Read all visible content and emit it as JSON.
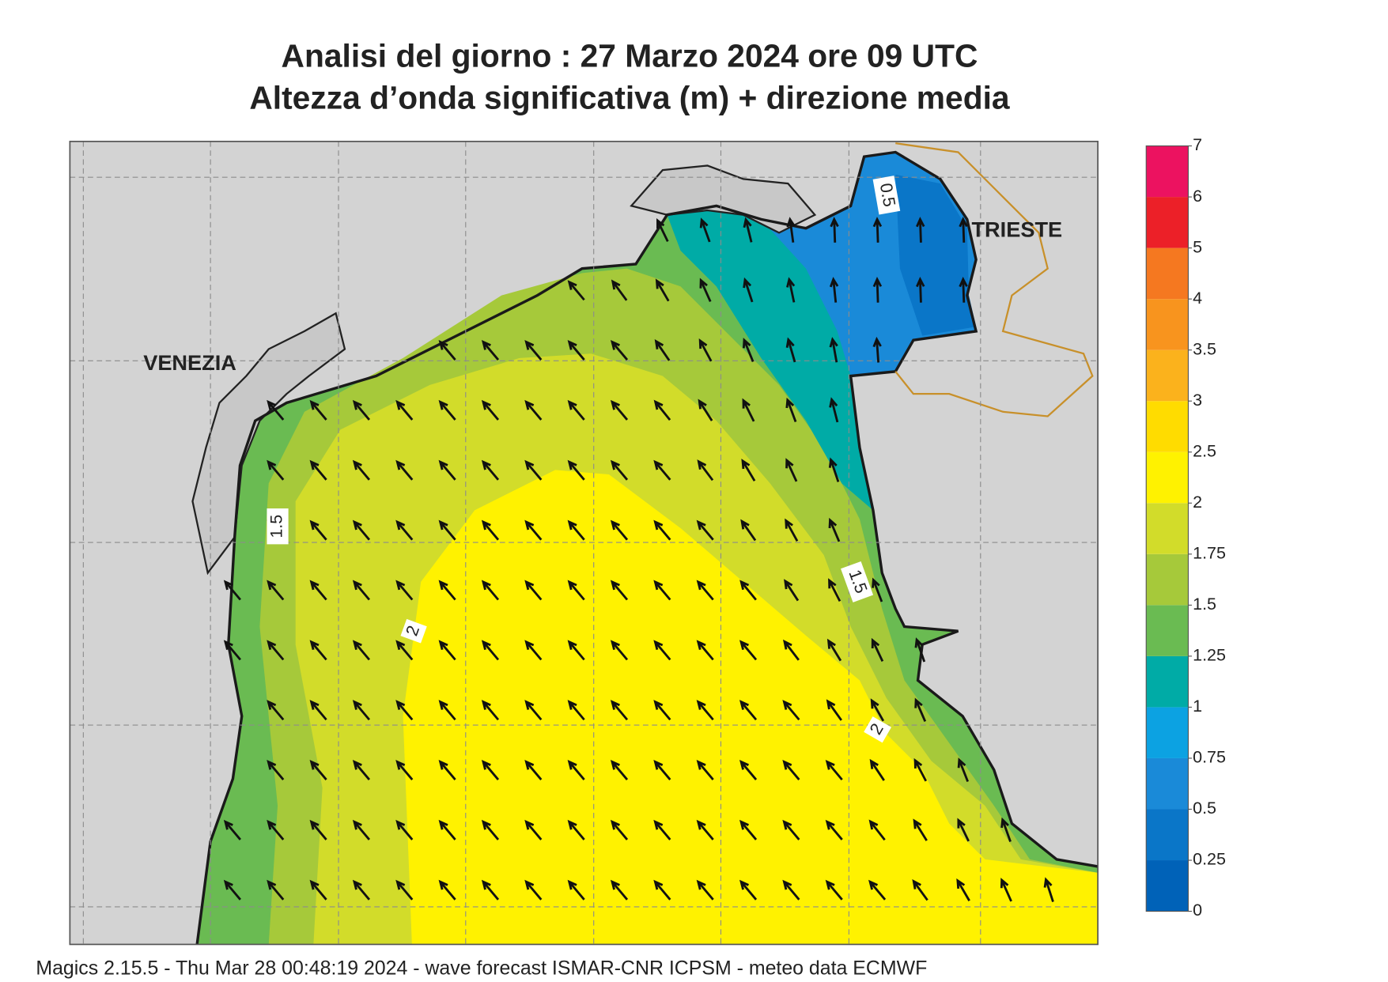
{
  "title": [
    "Analisi del giorno :  27   Marzo   2024   ore 09 UTC",
    "Altezza d’onda significativa (m) + direzione media"
  ],
  "places": [
    "VENEZIA",
    "TRIESTE"
  ],
  "contour_labels": [
    "0.5",
    "1.5",
    "1.5",
    "2",
    "2"
  ],
  "colorbar": {
    "levels": [
      0,
      0.25,
      0.5,
      0.75,
      1,
      1.25,
      1.5,
      1.75,
      2,
      2.5,
      3,
      3.5,
      4,
      5,
      6,
      7
    ],
    "colors": [
      "#0062b8",
      "#0a76c8",
      "#1a8ad8",
      "#0ca2e2",
      "#00aba6",
      "#6abb52",
      "#a6c93a",
      "#d2dc2a",
      "#fff200",
      "#ffdc00",
      "#fbb21c",
      "#f8941e",
      "#f57820",
      "#ec2028",
      "#ec1260"
    ]
  },
  "footer": "Magics 2.15.5 - Thu Mar 28 00:48:19 2024 - wave forecast  ISMAR-CNR  ICPSM - meteo data   ECMWF"
}
